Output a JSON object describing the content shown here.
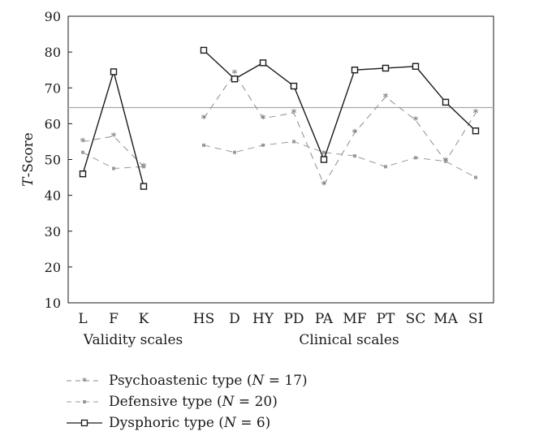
{
  "chart_data": {
    "type": "line",
    "ylabel_italic": "T",
    "ylabel_rest": "-Score",
    "ylim": [
      10,
      90
    ],
    "yticks": [
      "10",
      "20",
      "30",
      "40",
      "50",
      "60",
      "70",
      "80",
      "90"
    ],
    "reference_line": 64.5,
    "groups": [
      {
        "label": "Validity scales",
        "categories": [
          "L",
          "F",
          "K"
        ]
      },
      {
        "label": "Clinical scales",
        "categories": [
          "HS",
          "D",
          "HY",
          "PD",
          "PA",
          "MF",
          "PT",
          "SC",
          "MA",
          "SI"
        ]
      }
    ],
    "series": [
      {
        "id": "psych",
        "marker": "asterisk",
        "style": "dashed",
        "color": "#8c8c8c",
        "validity": [
          55,
          56.5,
          48
        ],
        "clinical": [
          61.5,
          74,
          61.5,
          63,
          43,
          57.5,
          67.5,
          61,
          49.5,
          63
        ]
      },
      {
        "id": "def",
        "marker": "small-square",
        "style": "dashed",
        "color": "#9a9a9a",
        "validity": [
          52,
          47.5,
          48
        ],
        "clinical": [
          54,
          52,
          54,
          55,
          52,
          51,
          48,
          50.5,
          49.5,
          45
        ]
      },
      {
        "id": "dys",
        "marker": "square",
        "style": "solid",
        "color": "#1a1a1a",
        "validity": [
          46,
          74.5,
          42.5
        ],
        "clinical": [
          80.5,
          72.5,
          77,
          70.5,
          50,
          75,
          75.5,
          76,
          66,
          58
        ]
      }
    ],
    "legend": [
      {
        "id": "psych",
        "text": "Psychoastenic type (",
        "n_symbol": "N",
        "n_value": " = 17)"
      },
      {
        "id": "def",
        "text": "Defensive type (",
        "n_symbol": "N",
        "n_value": " = 20)"
      },
      {
        "id": "dys",
        "text": "Dysphoric type (",
        "n_symbol": "N",
        "n_value": " = 6)"
      }
    ]
  }
}
